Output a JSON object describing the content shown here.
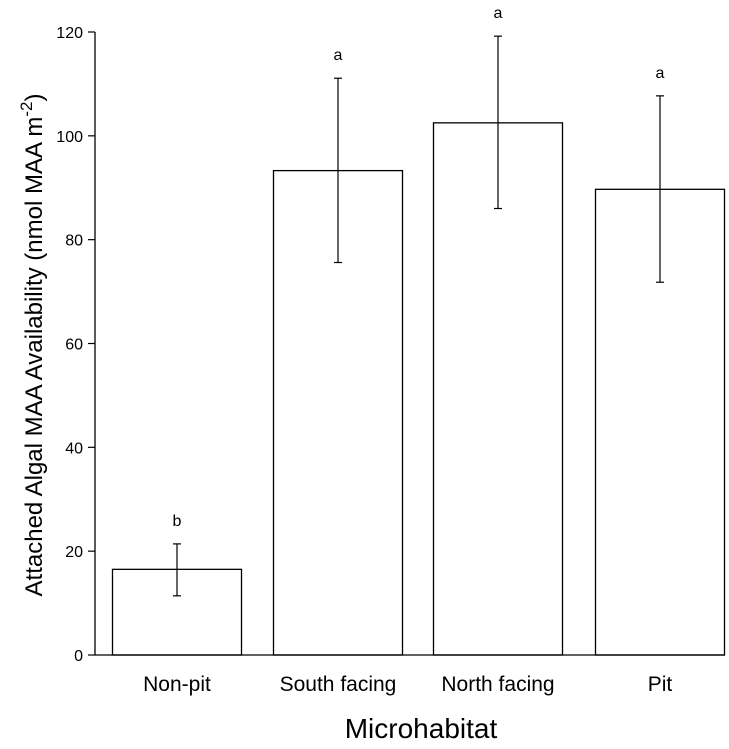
{
  "chart_data": {
    "type": "bar",
    "title": "",
    "xlabel": "Microhabitat",
    "ylabel": "Attached Algal MAA Availability (nmol MAA m",
    "ylabel_superscript": "-2",
    "ylabel_close": ")",
    "categories": [
      "Non-pit",
      "South facing",
      "North facing",
      "Pit"
    ],
    "values": [
      16.5,
      93.3,
      102.5,
      89.7
    ],
    "error_low": [
      11.4,
      75.6,
      86.0,
      71.8
    ],
    "error_high": [
      21.4,
      111.1,
      119.2,
      107.7
    ],
    "significance_letters": [
      "b",
      "a",
      "a",
      "a"
    ],
    "ylim": [
      0,
      120
    ],
    "yticks": [
      "0",
      "20",
      "40",
      "60",
      "80",
      "100",
      "120"
    ],
    "grid": false,
    "bar_fill": "#ffffff",
    "bar_stroke": "#000000"
  }
}
